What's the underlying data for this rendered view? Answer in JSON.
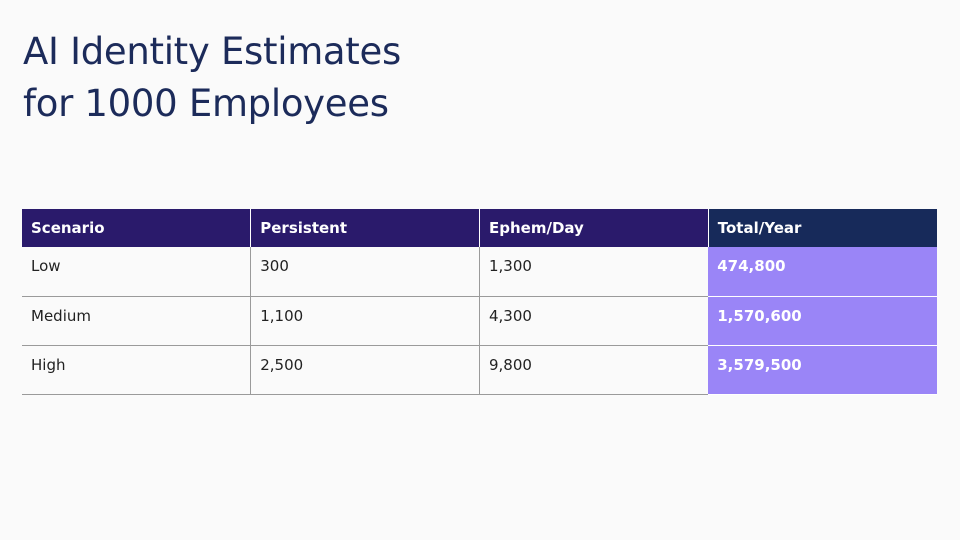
{
  "header": {
    "title_lines": [
      "AI Identity Estimates",
      "for 1000 Employees"
    ]
  },
  "table": {
    "columns": [
      "Scenario",
      "Persistent",
      "Ephem/Day",
      "Total/Year"
    ],
    "rows": [
      [
        "Low",
        "300",
        "1,300",
        "474,800"
      ],
      [
        "Medium",
        "1,100",
        "4,300",
        "1,570,600"
      ],
      [
        "High",
        "2,500",
        "9,800",
        "3,579,500"
      ]
    ]
  }
}
